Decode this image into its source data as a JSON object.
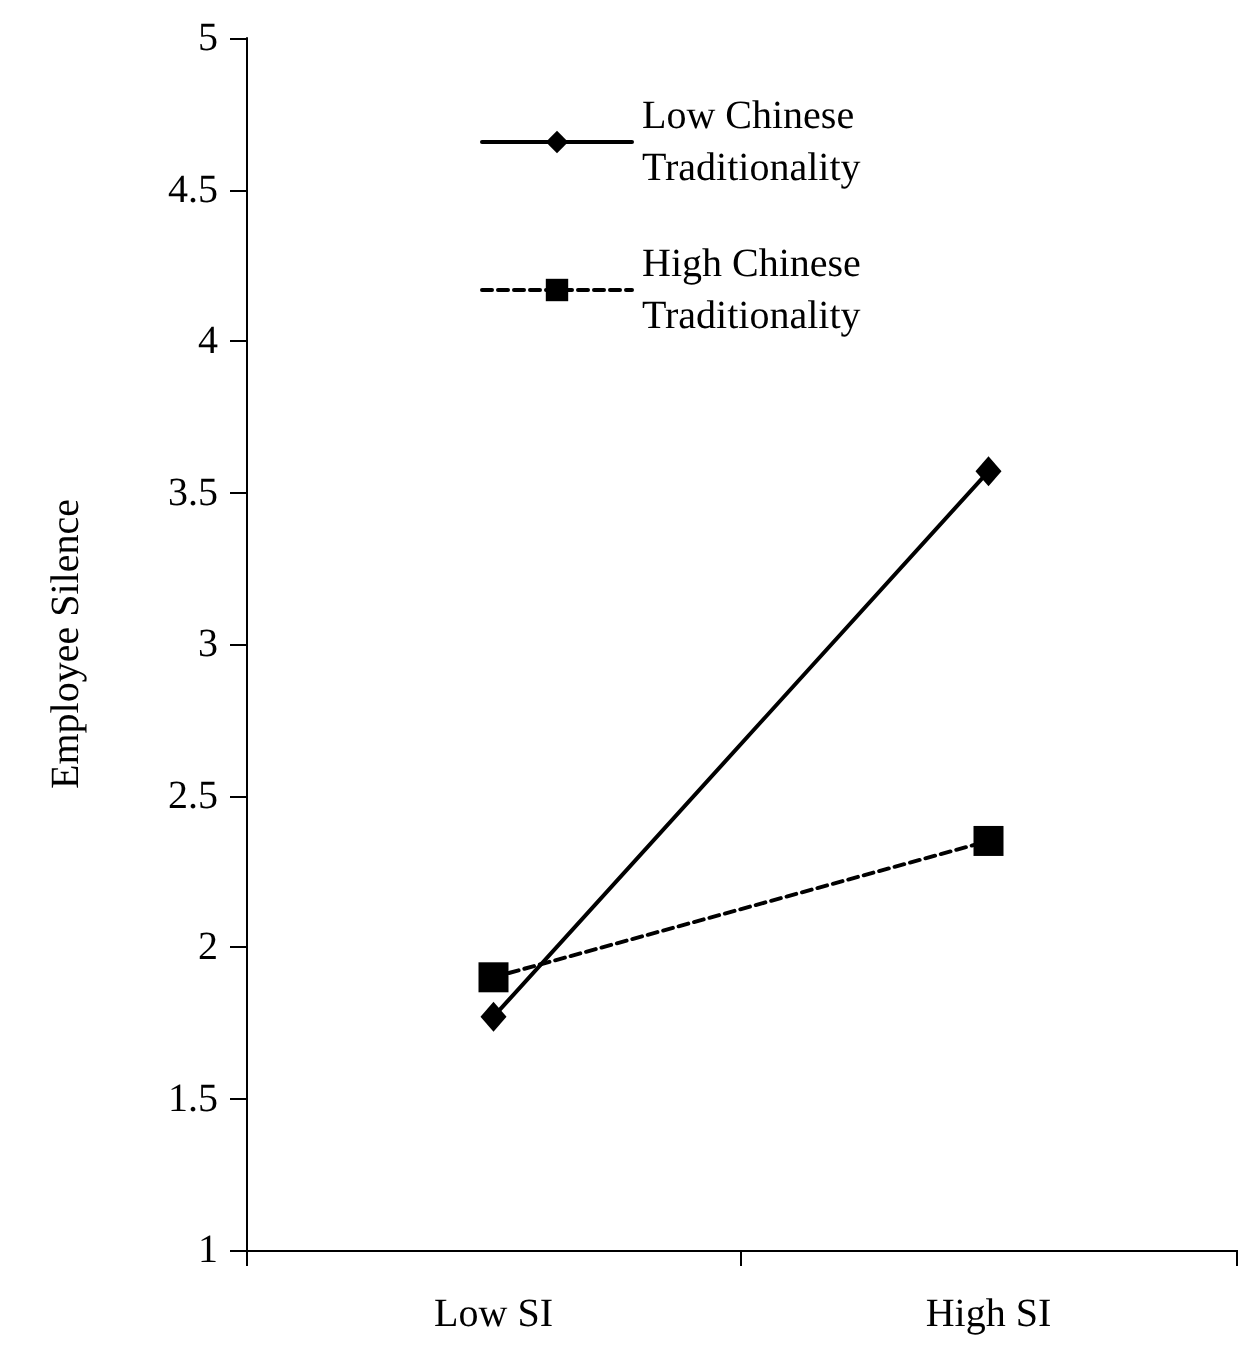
{
  "chart_data": {
    "type": "line",
    "ylabel": "Employee Silence",
    "categories": [
      "Low SI",
      "High SI"
    ],
    "series": [
      {
        "name": "Low Chinese Traditionality",
        "color": "#000000",
        "values": [
          1.77,
          3.57
        ],
        "marker": "diamond",
        "line_style": "solid"
      },
      {
        "name": "High Chinese Traditionality",
        "color": "#000000",
        "values": [
          1.9,
          2.35
        ],
        "marker": "square",
        "line_style": "dashed"
      }
    ],
    "ylim": [
      1,
      5
    ],
    "yticks": [
      1,
      1.5,
      2,
      2.5,
      3,
      3.5,
      4,
      4.5,
      5
    ],
    "grid": false,
    "legend": "top left"
  }
}
